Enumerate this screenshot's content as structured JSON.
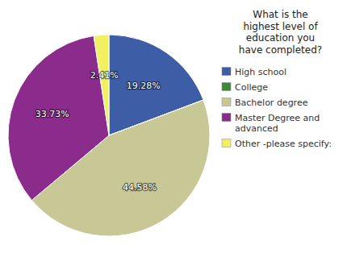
{
  "chart_data": {
    "type": "pie",
    "title": "What is the\nhighest level of\neducation you\nhave completed?",
    "categories": [
      "High school",
      "College",
      "Bachelor degree",
      "Master Degree and\nadvanced",
      "Other -please specify:"
    ],
    "values": [
      19.28,
      0.01,
      44.58,
      33.73,
      2.41
    ],
    "value_labels": [
      "19.28%",
      null,
      "44.58%",
      "33.73%",
      "2.41%"
    ],
    "colors": [
      "#3d5da7",
      "#3a8a3a",
      "#c8c896",
      "#8b2b8b",
      "#f0f060"
    ],
    "data_labels": true,
    "legend": "upper right"
  }
}
